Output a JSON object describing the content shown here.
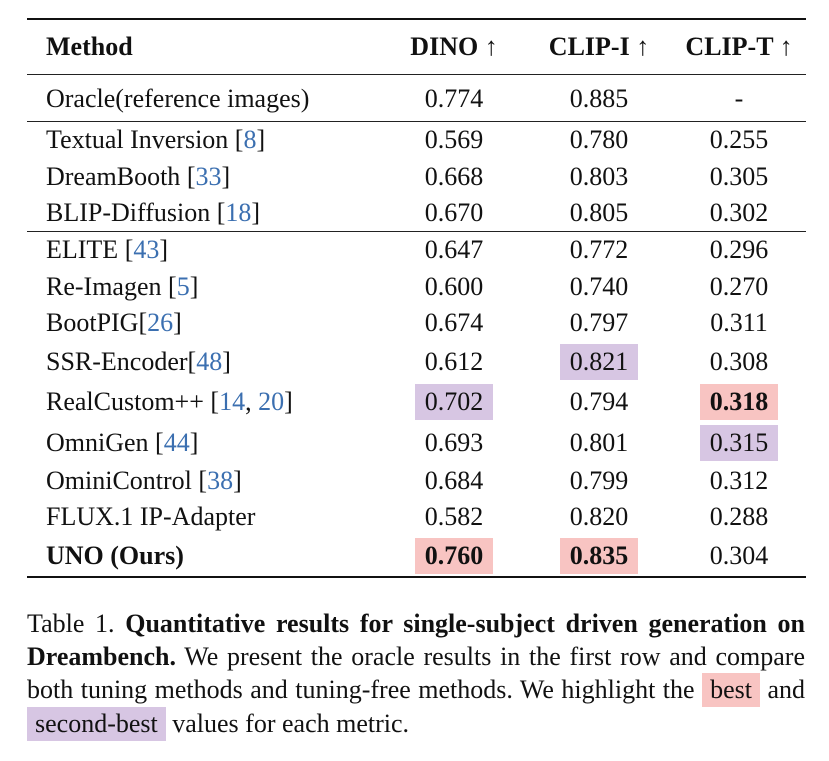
{
  "table": {
    "headers": [
      "Method",
      "DINO ↑",
      "CLIP-I ↑",
      "CLIP-T ↑"
    ],
    "groups": [
      [
        {
          "method": "Oracle(reference images)",
          "cites": [],
          "dino": "0.774",
          "clipi": "0.885",
          "clipt": "-"
        }
      ],
      [
        {
          "method": "Textual Inversion",
          "cites": [
            "8"
          ],
          "dino": "0.569",
          "clipi": "0.780",
          "clipt": "0.255"
        },
        {
          "method": "DreamBooth",
          "cites": [
            "33"
          ],
          "dino": "0.668",
          "clipi": "0.803",
          "clipt": "0.305"
        },
        {
          "method": "BLIP-Diffusion",
          "cites": [
            "18"
          ],
          "dino": "0.670",
          "clipi": "0.805",
          "clipt": "0.302"
        }
      ],
      [
        {
          "method": "ELITE",
          "cites": [
            "43"
          ],
          "dino": "0.647",
          "clipi": "0.772",
          "clipt": "0.296"
        },
        {
          "method": "Re-Imagen",
          "cites": [
            "5"
          ],
          "dino": "0.600",
          "clipi": "0.740",
          "clipt": "0.270"
        },
        {
          "method": "BootPIG",
          "cites": [
            "26"
          ],
          "dino": "0.674",
          "clipi": "0.797",
          "clipt": "0.311"
        },
        {
          "method": "SSR-Encoder",
          "cites": [
            "48"
          ],
          "dino": "0.612",
          "clipi": "0.821",
          "clipt": "0.308"
        },
        {
          "method": "RealCustom++",
          "cites": [
            "14",
            "20"
          ],
          "dino": "0.702",
          "clipi": "0.794",
          "clipt": "0.318"
        },
        {
          "method": "OmniGen",
          "cites": [
            "44"
          ],
          "dino": "0.693",
          "clipi": "0.801",
          "clipt": "0.315"
        },
        {
          "method": "OminiControl",
          "cites": [
            "38"
          ],
          "dino": "0.684",
          "clipi": "0.799",
          "clipt": "0.312"
        },
        {
          "method": "FLUX.1 IP-Adapter",
          "cites": [],
          "dino": "0.582",
          "clipi": "0.820",
          "clipt": "0.288"
        },
        {
          "method": "UNO (Ours)",
          "cites": [],
          "dino": "0.760",
          "clipi": "0.835",
          "clipt": "0.304"
        }
      ]
    ],
    "highlights": {
      "best": {
        "dino": "UNO (Ours)",
        "clipi": "UNO (Ours)",
        "clipt": "RealCustom++"
      },
      "second": {
        "dino": "RealCustom++",
        "clipi": "SSR-Encoder",
        "clipt": "OmniGen"
      }
    },
    "bold_method": "UNO (Ours)"
  },
  "colors": {
    "best": "#f8c4c2",
    "second": "#d7c6e3",
    "citation": "#3b6fb0"
  },
  "caption": {
    "label": "Table 1.",
    "bold": "Quantitative results for single-subject driven generation on Dreambench.",
    "text1": "We present the oracle results in the first row and compare both tuning methods and tuning-free methods. We highlight the",
    "best_word": "best",
    "and_word": "and",
    "second_word": "second-best",
    "text2": "values for each metric."
  }
}
